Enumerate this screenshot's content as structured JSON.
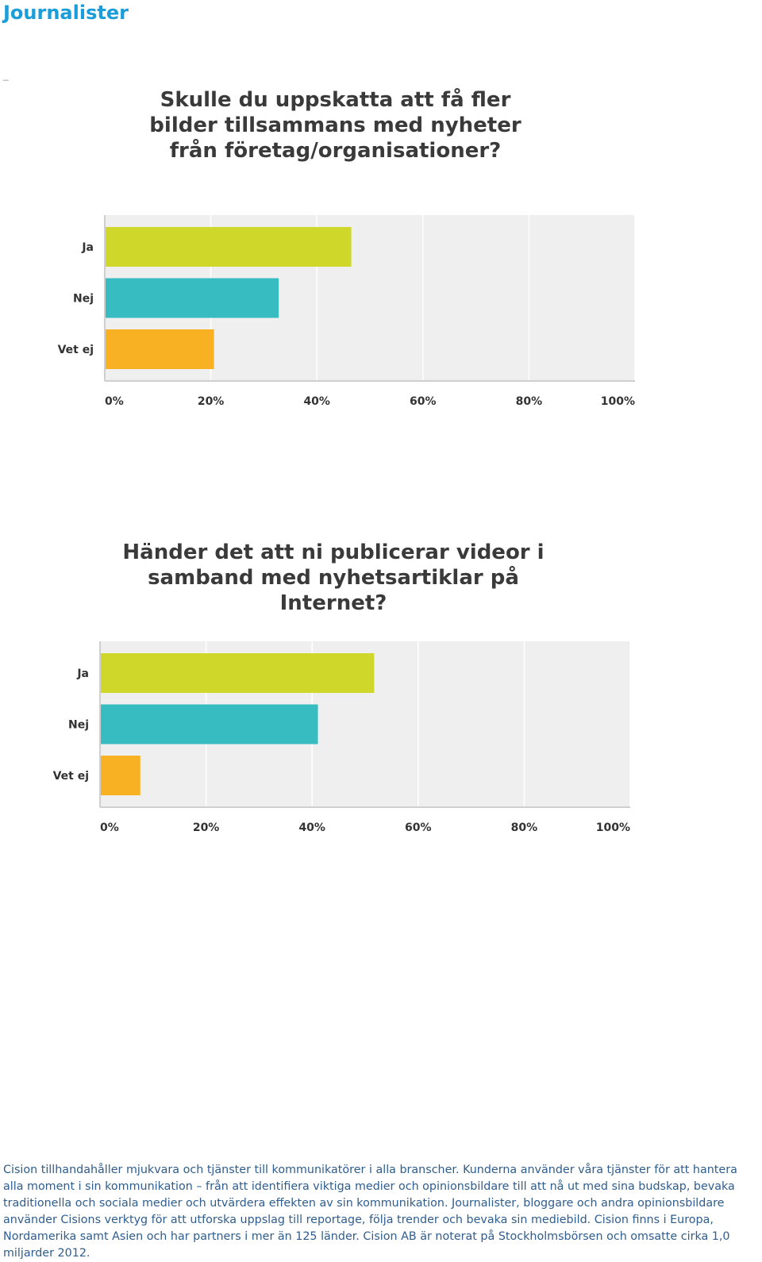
{
  "document": {
    "title": "Journalister",
    "dash": "_",
    "footer": "Cision tillhandahåller mjukvara och tjänster till kommunikatörer i alla branscher. Kunderna använder våra tjänster för att hantera alla moment i sin kommunikation – från att identifiera viktiga medier och opinionsbildare till att nå ut med sina budskap, bevaka traditionella och sociala medier och utvärdera effekten av sin kommunikation. Journalister, bloggare och andra opinionsbildare använder Cisions verktyg för att utforska uppslag till reportage, följa trender och bevaka sin mediebild. Cision finns i Europa, Nordamerika samt Asien och har partners i mer än 125 länder. Cision AB är noterat på Stockholmsbörsen och omsatte cirka 1,0 miljarder 2012."
  },
  "colors": {
    "ja": "#cfd72a",
    "nej": "#37bcc1",
    "vet_ej": "#f7b122",
    "plot_bg": "#efefef",
    "grid": "#ffffff",
    "axis": "#cfcfcf"
  },
  "chart_data": [
    {
      "type": "bar",
      "orientation": "horizontal",
      "title": "Skulle du uppskatta att få fler bilder tillsammans med nyheter från företag/organisationer?",
      "categories": [
        "Ja",
        "Nej",
        "Vet ej"
      ],
      "values": [
        46.5,
        32.8,
        20.6
      ],
      "unit": "%",
      "xlim": [
        0,
        100
      ],
      "ticks": [
        "0%",
        "20%",
        "40%",
        "60%",
        "80%",
        "100%"
      ],
      "grid": true,
      "legend": "none"
    },
    {
      "type": "bar",
      "orientation": "horizontal",
      "title": "Händer det att ni publicerar videor i samband med nyhetsartiklar på Internet?",
      "categories": [
        "Ja",
        "Nej",
        "Vet ej"
      ],
      "values": [
        51.7,
        41.1,
        7.6
      ],
      "unit": "%",
      "xlim": [
        0,
        100
      ],
      "ticks": [
        "0%",
        "20%",
        "40%",
        "60%",
        "80%",
        "100%"
      ],
      "grid": true,
      "legend": "none"
    }
  ]
}
